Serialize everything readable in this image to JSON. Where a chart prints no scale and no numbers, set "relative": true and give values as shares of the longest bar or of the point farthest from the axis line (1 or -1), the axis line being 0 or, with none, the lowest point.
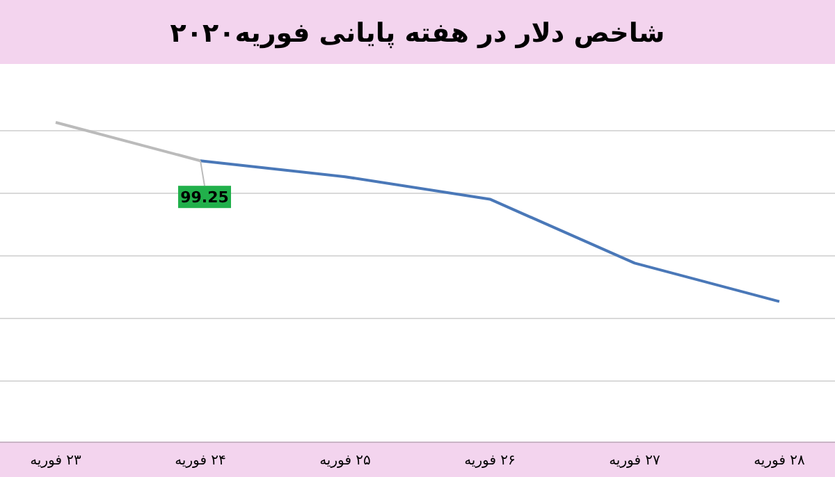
{
  "chart_data": {
    "type": "line",
    "title": "شاخص دلار در هفته پایانی فوریه۲۰۲۰",
    "categories": [
      "۲۳ فوریه",
      "۲۴ فوریه",
      "۲۵ فوریه",
      "۲۶ فوریه",
      "۲۷ فوریه",
      "۲۸ فوریه"
    ],
    "relative": true,
    "grid": true,
    "marker": "none",
    "line_style": "solid",
    "annotations": [
      {
        "text": "99.25",
        "x": "۲۴ فوریه"
      }
    ],
    "series": [
      {
        "color": "#bbbbbb",
        "values": [
          1,
          0.88,
          null,
          null,
          null,
          null
        ]
      },
      {
        "color": "#4a78b8",
        "values": [
          null,
          0.88,
          0.83,
          0.76,
          0.56,
          0.44
        ]
      }
    ]
  }
}
